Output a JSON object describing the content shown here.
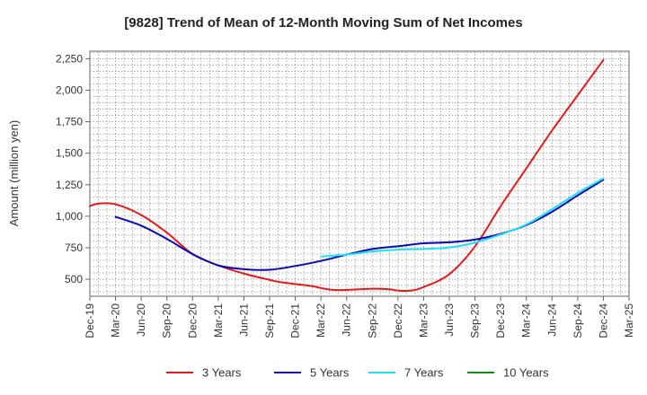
{
  "chart_data": {
    "type": "line",
    "title": "[9828]  Trend of Mean of 12-Month Moving Sum of Net Incomes",
    "ylabel": "Amount (million yen)",
    "xlabel": "",
    "x_ticks": [
      "Dec-19",
      "Mar-20",
      "Jun-20",
      "Sep-20",
      "Dec-20",
      "Mar-21",
      "Jun-21",
      "Sep-21",
      "Dec-21",
      "Mar-22",
      "Jun-22",
      "Sep-22",
      "Dec-22",
      "Mar-23",
      "Jun-23",
      "Sep-23",
      "Dec-23",
      "Mar-24",
      "Jun-24",
      "Sep-24",
      "Dec-24",
      "Mar-25"
    ],
    "y_ticks": [
      500,
      750,
      1000,
      1250,
      1500,
      1750,
      2000,
      2250
    ],
    "y_tick_labels": [
      "500",
      "750",
      "1,000",
      "1,250",
      "1,500",
      "1,750",
      "2,000",
      "2,250"
    ],
    "ylim": [
      365,
      2310
    ],
    "grid": true,
    "legend_position": "bottom",
    "series": [
      {
        "name": "3 Years",
        "color": "#e8191c",
        "points": [
          [
            0,
            1080
          ],
          [
            0.33,
            1100
          ],
          [
            1,
            1095
          ],
          [
            2,
            1010
          ],
          [
            3,
            870
          ],
          [
            4,
            700
          ],
          [
            5,
            610
          ],
          [
            6,
            545
          ],
          [
            7,
            495
          ],
          [
            7.33,
            480
          ],
          [
            8,
            462
          ],
          [
            8.67,
            445
          ],
          [
            9,
            430
          ],
          [
            9.5,
            415
          ],
          [
            10,
            415
          ],
          [
            11,
            425
          ],
          [
            11.67,
            420
          ],
          [
            12,
            410
          ],
          [
            12.5,
            410
          ],
          [
            13,
            438
          ],
          [
            14,
            540
          ],
          [
            15,
            760
          ],
          [
            16,
            1080
          ],
          [
            17,
            1380
          ],
          [
            18,
            1680
          ],
          [
            19,
            1960
          ],
          [
            20,
            2240
          ]
        ]
      },
      {
        "name": "5 Years",
        "color": "#0a0ab4",
        "points": [
          [
            1,
            995
          ],
          [
            2,
            925
          ],
          [
            3,
            820
          ],
          [
            4,
            700
          ],
          [
            5,
            610
          ],
          [
            6,
            580
          ],
          [
            7,
            575
          ],
          [
            8,
            605
          ],
          [
            9,
            645
          ],
          [
            10,
            695
          ],
          [
            11,
            740
          ],
          [
            12,
            762
          ],
          [
            13,
            785
          ],
          [
            14,
            793
          ],
          [
            15,
            815
          ],
          [
            16,
            860
          ],
          [
            17,
            930
          ],
          [
            18,
            1035
          ],
          [
            19,
            1165
          ],
          [
            20,
            1290
          ]
        ]
      },
      {
        "name": "7 Years",
        "color": "#1ee1f0",
        "points": [
          [
            9,
            680
          ],
          [
            10,
            695
          ],
          [
            11,
            720
          ],
          [
            12,
            735
          ],
          [
            13,
            740
          ],
          [
            14,
            752
          ],
          [
            15,
            790
          ],
          [
            16,
            855
          ],
          [
            17,
            935
          ],
          [
            18,
            1055
          ],
          [
            19,
            1185
          ],
          [
            20,
            1300
          ]
        ]
      },
      {
        "name": "10 Years",
        "color": "#168a16",
        "points": []
      }
    ]
  }
}
